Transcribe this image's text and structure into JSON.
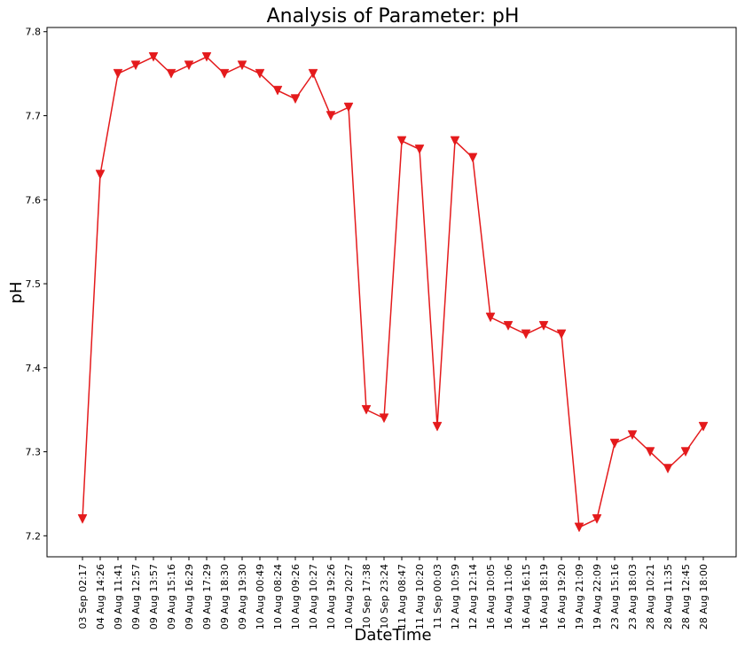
{
  "chart_data": {
    "type": "line",
    "title": "Analysis of Parameter: pH",
    "xlabel": "DateTime",
    "ylabel": "pH",
    "ylim": [
      7.175,
      7.805
    ],
    "yticks": [
      7.2,
      7.3,
      7.4,
      7.5,
      7.6,
      7.7,
      7.8
    ],
    "grid": false,
    "line_color": "#e41a1c",
    "marker": "triangle-down",
    "x": [
      "03 Sep 02:17",
      "04 Aug 14:26",
      "09 Aug 11:41",
      "09 Aug 12:57",
      "09 Aug 13:57",
      "09 Aug 15:16",
      "09 Aug 16:29",
      "09 Aug 17:29",
      "09 Aug 18:30",
      "09 Aug 19:30",
      "10 Aug 00:49",
      "10 Aug 08:24",
      "10 Aug 09:26",
      "10 Aug 10:27",
      "10 Aug 19:26",
      "10 Aug 20:27",
      "10 Sep 17:38",
      "10 Sep 23:24",
      "11 Aug 08:47",
      "11 Aug 10:20",
      "11 Sep 00:03",
      "12 Aug 10:59",
      "12 Aug 12:14",
      "16 Aug 10:05",
      "16 Aug 11:06",
      "16 Aug 16:15",
      "16 Aug 18:19",
      "16 Aug 19:20",
      "19 Aug 21:09",
      "19 Aug 22:09",
      "23 Aug 15:16",
      "23 Aug 18:03",
      "28 Aug 10:21",
      "28 Aug 11:35",
      "28 Aug 12:45",
      "28 Aug 18:00"
    ],
    "series": [
      {
        "values": [
          7.22,
          7.63,
          7.75,
          7.76,
          7.77,
          7.75,
          7.76,
          7.77,
          7.75,
          7.76,
          7.75,
          7.73,
          7.72,
          7.75,
          7.7,
          7.71,
          7.35,
          7.34,
          7.67,
          7.66,
          7.33,
          7.67,
          7.65,
          7.46,
          7.45,
          7.44,
          7.45,
          7.44,
          7.21,
          7.22,
          7.31,
          7.32,
          7.3,
          7.28,
          7.3,
          7.33
        ]
      }
    ]
  }
}
